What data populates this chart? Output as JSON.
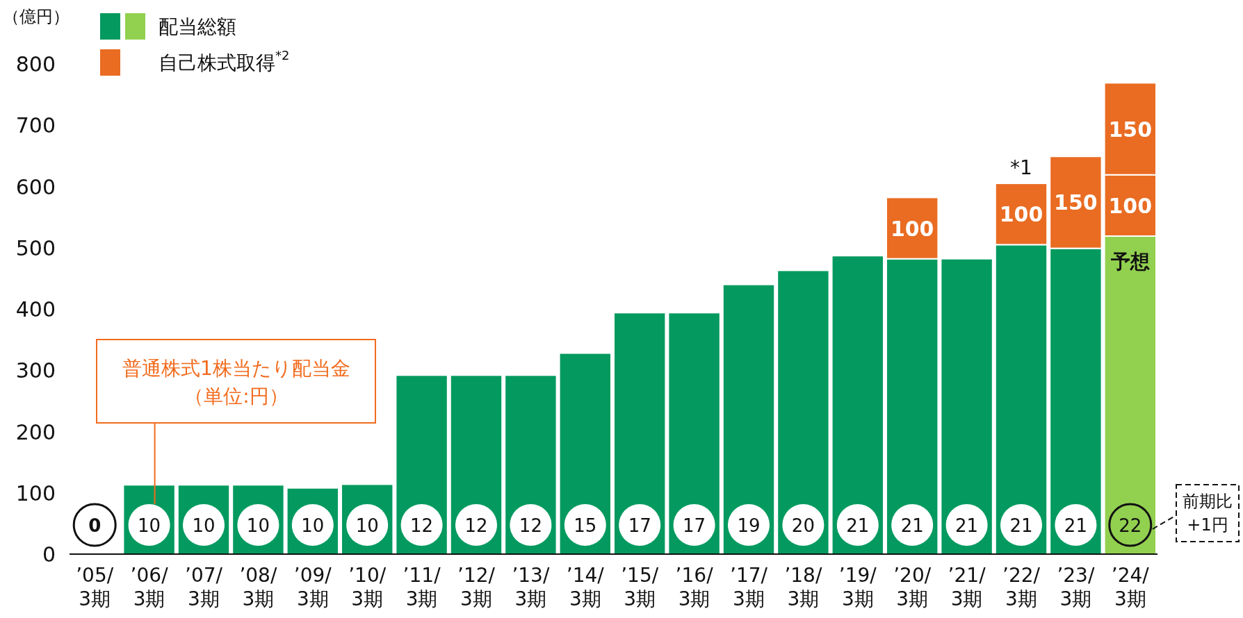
{
  "chart_data": {
    "type": "bar",
    "stacked": true,
    "ylabel": "（億円）",
    "legend": "top left",
    "categories": [
      "’05/\n3期",
      "’06/\n3期",
      "’07/\n3期",
      "’08/\n3期",
      "’09/\n3期",
      "’10/\n3期",
      "’11/\n3期",
      "’12/\n3期",
      "’13/\n3期",
      "’14/\n3期",
      "’15/\n3期",
      "’16/\n3期",
      "’17/\n3期",
      "’18/\n3期",
      "’19/\n3期",
      "’20/\n3期",
      "’21/\n3期",
      "’22/\n3期",
      "’23/\n3期",
      "’24/\n3期"
    ],
    "ylim": [
      0,
      800
    ],
    "yticks": [
      0,
      100,
      200,
      300,
      400,
      500,
      600,
      700,
      800
    ],
    "series": [
      {
        "name": "配当総額",
        "colors": [
          "#049a5f",
          "#049a5f",
          "#049a5f",
          "#049a5f",
          "#049a5f",
          "#049a5f",
          "#049a5f",
          "#049a5f",
          "#049a5f",
          "#049a5f",
          "#049a5f",
          "#049a5f",
          "#049a5f",
          "#049a5f",
          "#049a5f",
          "#049a5f",
          "#049a5f",
          "#049a5f",
          "#049a5f",
          "#92d050"
        ],
        "values": [
          null,
          113,
          113,
          113,
          108,
          114,
          292,
          292,
          292,
          328,
          394,
          394,
          440,
          463,
          487,
          482,
          482,
          505,
          499,
          519
        ]
      },
      {
        "name": "自己株式取得$^{*2}$",
        "color": "#e96c22",
        "values": [
          null,
          null,
          null,
          null,
          null,
          null,
          null,
          null,
          null,
          null,
          null,
          null,
          null,
          null,
          null,
          100,
          null,
          100,
          150,
          100
        ],
        "value_labels": [
          null,
          null,
          null,
          null,
          null,
          null,
          null,
          null,
          null,
          null,
          null,
          null,
          null,
          null,
          null,
          "100",
          null,
          "100",
          "150",
          "100"
        ]
      },
      {
        "color": "#e96c22",
        "values": [
          null,
          null,
          null,
          null,
          null,
          null,
          null,
          null,
          null,
          null,
          null,
          null,
          null,
          null,
          null,
          null,
          null,
          null,
          null,
          150
        ],
        "value_labels": [
          null,
          null,
          null,
          null,
          null,
          null,
          null,
          null,
          null,
          null,
          null,
          null,
          null,
          null,
          null,
          null,
          null,
          null,
          null,
          "150"
        ]
      }
    ],
    "annotations": [
      "普通株式1株当たり配当金（単位:円）",
      "前期比+1円",
      {
        "text": "*1",
        "x": "’22/\n3期",
        "y": 606
      },
      {
        "text": "予想",
        "x": "’24/\n3期",
        "y": 519
      },
      "0",
      "10",
      "10",
      "10",
      "10",
      "10",
      "12",
      "12",
      "12",
      "15",
      "17",
      "17",
      "19",
      "20",
      "21",
      "21",
      "21",
      "21",
      "21",
      "22"
    ]
  }
}
